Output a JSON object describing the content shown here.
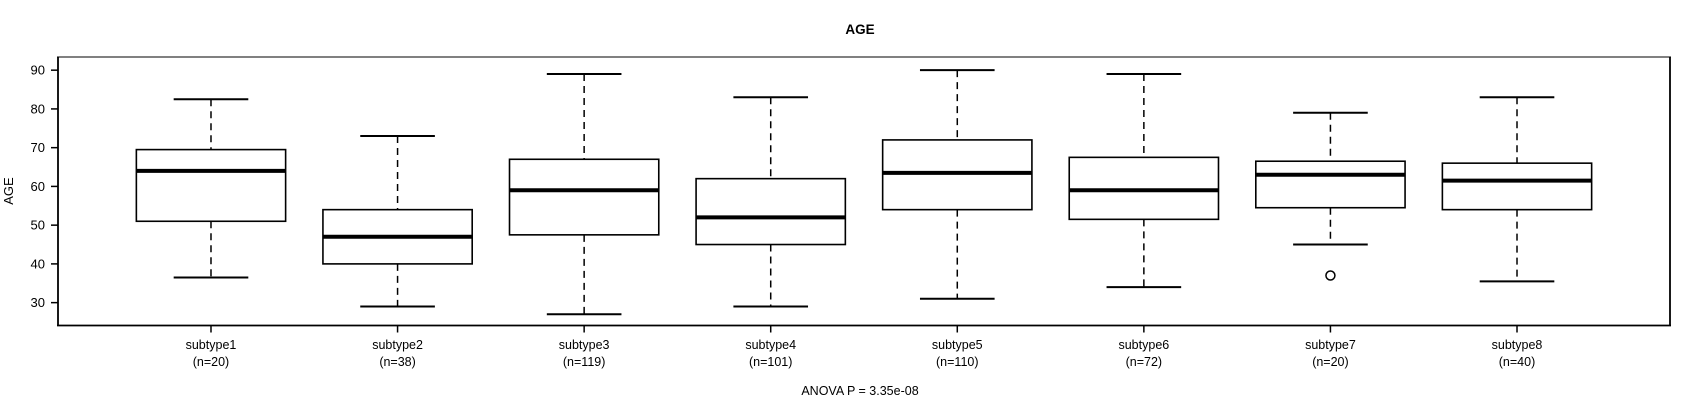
{
  "chart_data": {
    "type": "boxplot",
    "title": "AGE",
    "ylabel": "AGE",
    "xlabel": "",
    "caption": "ANOVA P = 3.35e-08",
    "grid": false,
    "legend": "none",
    "ylim": [
      24.1,
      93.4
    ],
    "yticks": [
      30,
      40,
      50,
      60,
      70,
      80,
      90
    ],
    "categories": [
      "subtype1",
      "subtype2",
      "subtype3",
      "subtype4",
      "subtype5",
      "subtype6",
      "subtype7",
      "subtype8"
    ],
    "category_counts": [
      "(n=20)",
      "(n=38)",
      "(n=119)",
      "(n=101)",
      "(n=110)",
      "(n=72)",
      "(n=20)",
      "(n=40)"
    ],
    "series": [
      {
        "name": "subtype1",
        "n": 20,
        "whisker_low": 36.5,
        "q1": 51,
        "median": 64,
        "q3": 69.5,
        "whisker_high": 82.5,
        "outliers": []
      },
      {
        "name": "subtype2",
        "n": 38,
        "whisker_low": 29,
        "q1": 40,
        "median": 47,
        "q3": 54,
        "whisker_high": 73,
        "outliers": []
      },
      {
        "name": "subtype3",
        "n": 119,
        "whisker_low": 27,
        "q1": 47.5,
        "median": 59,
        "q3": 67,
        "whisker_high": 89,
        "outliers": []
      },
      {
        "name": "subtype4",
        "n": 101,
        "whisker_low": 29,
        "q1": 45,
        "median": 52,
        "q3": 62,
        "whisker_high": 83,
        "outliers": []
      },
      {
        "name": "subtype5",
        "n": 110,
        "whisker_low": 31,
        "q1": 54,
        "median": 63.5,
        "q3": 72,
        "whisker_high": 90,
        "outliers": []
      },
      {
        "name": "subtype6",
        "n": 72,
        "whisker_low": 34,
        "q1": 51.5,
        "median": 59,
        "q3": 67.5,
        "whisker_high": 89,
        "outliers": []
      },
      {
        "name": "subtype7",
        "n": 20,
        "whisker_low": 45,
        "q1": 54.5,
        "median": 63,
        "q3": 66.5,
        "whisker_high": 79,
        "outliers": [
          37
        ]
      },
      {
        "name": "subtype8",
        "n": 40,
        "whisker_low": 35.5,
        "q1": 54,
        "median": 61.5,
        "q3": 66,
        "whisker_high": 83,
        "outliers": []
      }
    ],
    "colors": {
      "line": "#000000",
      "frame_top": "#808080",
      "box_fill": "#ffffff",
      "background": "#ffffff"
    }
  }
}
